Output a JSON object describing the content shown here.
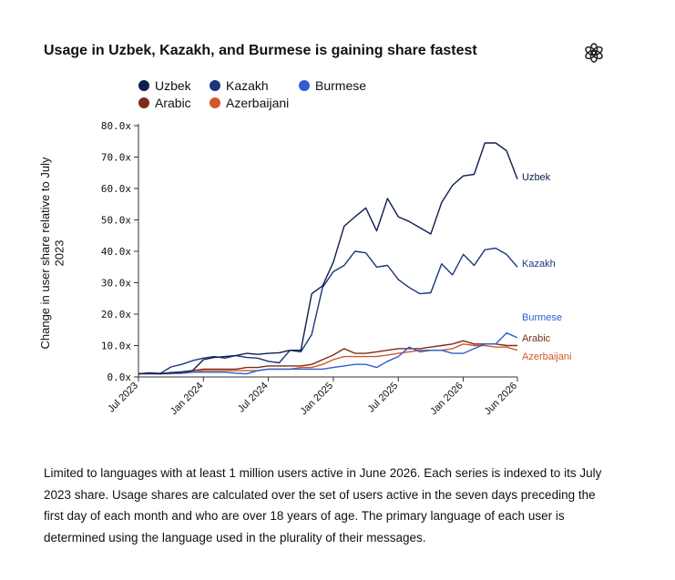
{
  "title": "Usage in Uzbek, Kazakh, and Burmese is gaining share fastest",
  "logo_icon": "openai-logo-icon",
  "caption": "Limited to languages with at least 1 million users active in June 2026. Each series is indexed to its July 2023 share. Usage shares are calculated over the set of users active in the seven days preceding the first day of each month and who are over 18 years of age. The primary language of each user is determined using the language used in the plurality of their messages.",
  "chart_data": {
    "type": "line",
    "title": "Usage in Uzbek, Kazakh, and Burmese is gaining share fastest",
    "xlabel": "",
    "ylabel": "Change in user share relative to July 2023",
    "x": [
      "2023-07",
      "2023-08",
      "2023-09",
      "2023-10",
      "2023-11",
      "2023-12",
      "2024-01",
      "2024-02",
      "2024-03",
      "2024-04",
      "2024-05",
      "2024-06",
      "2024-07",
      "2024-08",
      "2024-09",
      "2024-10",
      "2024-11",
      "2024-12",
      "2025-01",
      "2025-02",
      "2025-03",
      "2025-04",
      "2025-05",
      "2025-06",
      "2025-07",
      "2025-08",
      "2025-09",
      "2025-10",
      "2025-11",
      "2025-12",
      "2026-01",
      "2026-02",
      "2026-03",
      "2026-04",
      "2026-05",
      "2026-06"
    ],
    "x_ticks": [
      "Jul 2023",
      "Jan 2024",
      "Jul 2024",
      "Jan 2025",
      "Jul 2025",
      "Jan 2026",
      "Jun 2026"
    ],
    "x_tick_values": [
      "2023-07",
      "2024-01",
      "2024-07",
      "2025-01",
      "2025-07",
      "2026-01",
      "2026-06"
    ],
    "y_ticks": [
      "0.0x",
      "10.0x",
      "20.0x",
      "30.0x",
      "40.0x",
      "50.0x",
      "60.0x",
      "70.0x",
      "80.0x"
    ],
    "ylim": [
      0,
      80
    ],
    "grid": false,
    "legend_position": "top-left",
    "series": [
      {
        "name": "Uzbek",
        "color": "#0e1e4e",
        "values": [
          1.0,
          1.3,
          1.0,
          1.4,
          1.6,
          2.0,
          5.5,
          6.2,
          6.5,
          6.8,
          7.5,
          7.2,
          7.5,
          7.7,
          8.5,
          8.5,
          26.5,
          29.0,
          36.5,
          48.0,
          51.0,
          53.8,
          46.5,
          56.8,
          51.0,
          49.5,
          47.5,
          45.5,
          55.5,
          61.0,
          64.0,
          64.5,
          74.5,
          74.5,
          72.0,
          63.0
        ]
      },
      {
        "name": "Kazakh",
        "color": "#1a357c",
        "values": [
          1.0,
          1.2,
          1.1,
          3.2,
          4.0,
          5.2,
          6.0,
          6.5,
          6.0,
          6.8,
          6.2,
          6.0,
          5.0,
          4.5,
          8.5,
          8.0,
          13.5,
          28.5,
          33.5,
          35.5,
          40.0,
          39.5,
          35.0,
          35.5,
          31.0,
          28.5,
          26.5,
          26.8,
          36.0,
          32.5,
          39.0,
          35.5,
          40.5,
          41.0,
          39.0,
          35.0
        ]
      },
      {
        "name": "Burmese",
        "color": "#2f5dd0",
        "values": [
          1.0,
          1.0,
          1.0,
          1.2,
          1.2,
          1.5,
          1.5,
          1.5,
          1.5,
          1.2,
          1.0,
          2.0,
          2.5,
          2.5,
          2.5,
          2.5,
          2.5,
          2.5,
          3.0,
          3.5,
          4.0,
          4.0,
          3.0,
          5.0,
          6.5,
          9.5,
          8.0,
          8.5,
          8.5,
          7.5,
          7.5,
          9.0,
          10.5,
          10.5,
          14.0,
          12.5
        ]
      },
      {
        "name": "Arabic",
        "color": "#7a2d1a",
        "values": [
          1.0,
          1.2,
          1.2,
          1.2,
          1.5,
          2.0,
          2.5,
          2.5,
          2.5,
          2.5,
          3.0,
          3.0,
          3.5,
          3.5,
          3.5,
          3.5,
          4.0,
          5.5,
          7.0,
          9.0,
          7.5,
          7.5,
          8.0,
          8.5,
          9.0,
          9.0,
          9.0,
          9.5,
          10.0,
          10.5,
          11.5,
          10.5,
          10.5,
          10.5,
          10.0,
          10.0
        ]
      },
      {
        "name": "Azerbaijani",
        "color": "#d0582a",
        "values": [
          1.0,
          1.0,
          1.0,
          1.0,
          1.2,
          1.5,
          2.0,
          2.0,
          2.0,
          2.0,
          2.0,
          2.0,
          2.5,
          2.5,
          2.5,
          3.0,
          3.0,
          4.0,
          5.5,
          6.5,
          6.5,
          6.5,
          6.5,
          7.0,
          7.5,
          8.0,
          8.5,
          8.5,
          8.5,
          9.0,
          10.5,
          10.0,
          10.0,
          9.5,
          9.5,
          8.5
        ]
      }
    ]
  }
}
